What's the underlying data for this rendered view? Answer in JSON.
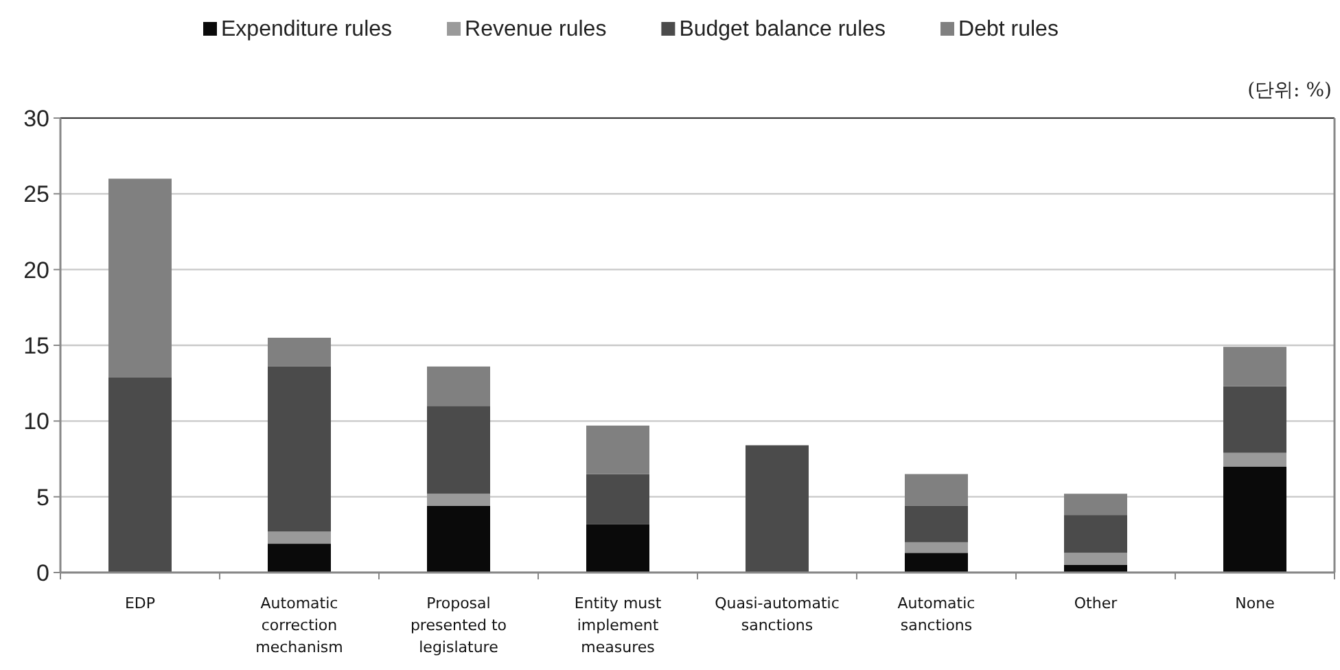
{
  "chart_data": {
    "type": "bar",
    "stacked": true,
    "categories": [
      "EDP",
      "Automatic correction mechanism",
      "Proposal presented to legislature",
      "Entity must implement measures",
      "Quasi-automatic sanctions",
      "Automatic sanctions",
      "Other",
      "None"
    ],
    "series": [
      {
        "name": "Expenditure rules",
        "color": "#0a0a0a",
        "values": [
          0,
          1.9,
          4.4,
          3.2,
          0,
          1.3,
          0.5,
          7.0
        ]
      },
      {
        "name": "Revenue rules",
        "color": "#9a9a9a",
        "values": [
          0,
          0.8,
          0.8,
          0,
          0,
          0.7,
          0.8,
          0.9
        ]
      },
      {
        "name": "Budget balance rules",
        "color": "#4b4b4b",
        "values": [
          12.9,
          10.9,
          5.8,
          3.3,
          8.4,
          2.4,
          2.5,
          4.4
        ]
      },
      {
        "name": "Debt rules",
        "color": "#808080",
        "values": [
          13.1,
          1.9,
          2.6,
          3.2,
          0,
          2.1,
          1.4,
          2.6
        ]
      }
    ],
    "ylim": [
      0,
      30
    ],
    "yticks": [
      0,
      5,
      10,
      15,
      20,
      25,
      30
    ],
    "grid": "y",
    "legend": "top",
    "annotations": [
      "(단위: %)"
    ]
  }
}
